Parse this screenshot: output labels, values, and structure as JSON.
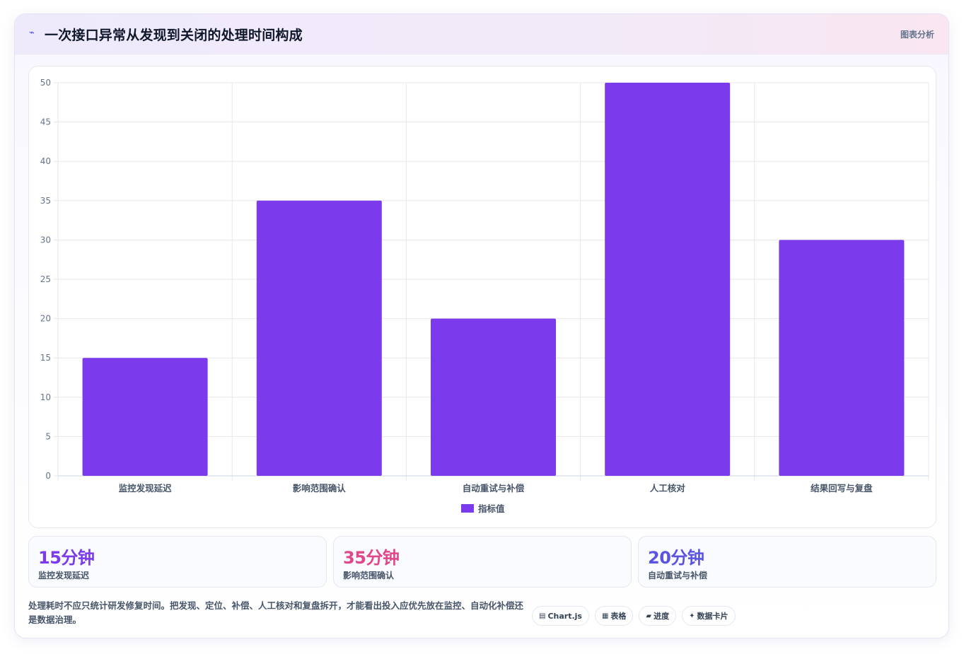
{
  "header": {
    "icon": "⌁",
    "title": "一次接口异常从发现到关闭的处理时间构成",
    "tag": "图表分析"
  },
  "chart_data": {
    "type": "bar",
    "categories": [
      "监控发现延迟",
      "影响范围确认",
      "自动重试与补偿",
      "人工核对",
      "结果回写与复盘"
    ],
    "series": [
      {
        "name": "指标值",
        "values": [
          15,
          35,
          20,
          50,
          30
        ],
        "color": "#7c3aed"
      }
    ],
    "ylim": [
      0,
      50
    ],
    "yticks": [
      0,
      5,
      10,
      15,
      20,
      25,
      30,
      35,
      40,
      45,
      50
    ],
    "grid": true,
    "legend": "bottom"
  },
  "stats": [
    {
      "value": "15分钟",
      "label": "监控发现延迟",
      "color": "#7c3aed"
    },
    {
      "value": "35分钟",
      "label": "影响范围确认",
      "color": "#e0488b"
    },
    {
      "value": "20分钟",
      "label": "自动重试与补偿",
      "color": "#5b54e0"
    }
  ],
  "footer": {
    "text": "处理耗时不应只统计研发修复时间。把发现、定位、补偿、人工核对和复盘拆开，才能看出投入应优先放在监控、自动化补偿还是数据治理。"
  },
  "chips": [
    {
      "icon": "▤",
      "label": "Chart.js"
    },
    {
      "icon": "▦",
      "label": "表格"
    },
    {
      "icon": "▰",
      "label": "进度"
    },
    {
      "icon": "✦",
      "label": "数据卡片"
    }
  ]
}
